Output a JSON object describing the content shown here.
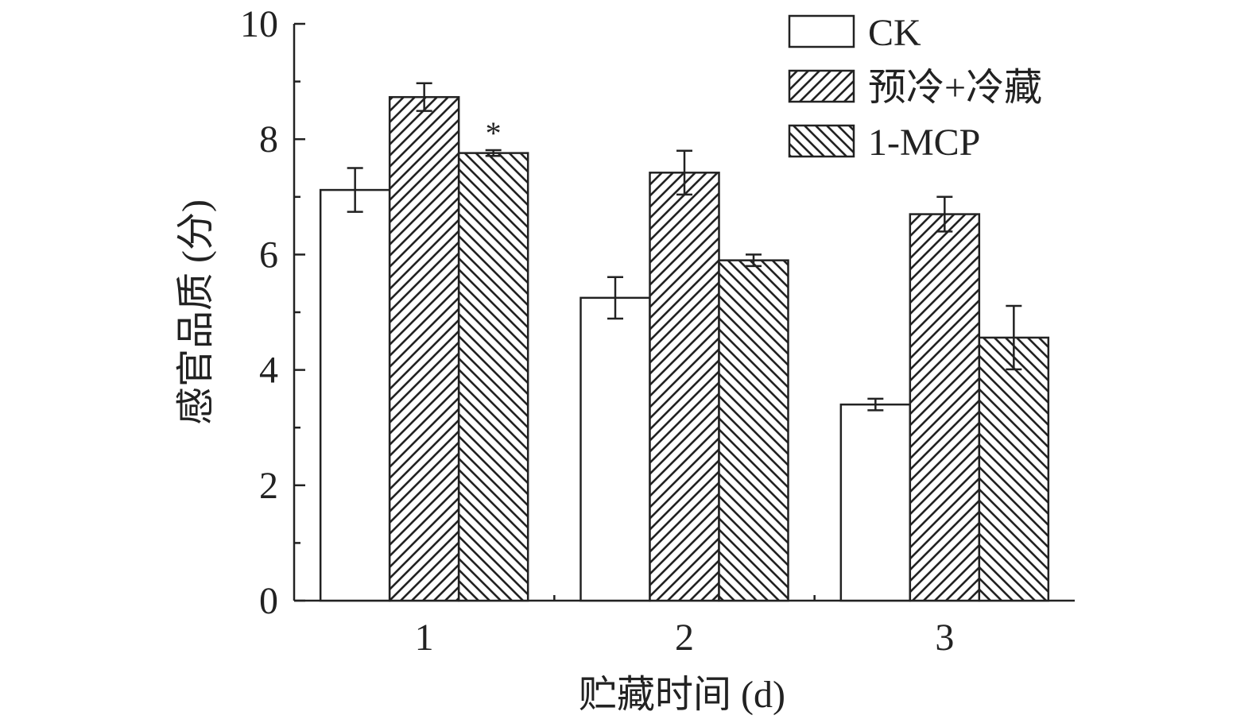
{
  "chart_data": {
    "type": "bar",
    "xlabel": "贮藏时间 (d)",
    "ylabel": "感官品质 (分)",
    "ylim": [
      0,
      10
    ],
    "yticks": [
      "0",
      "2",
      "4",
      "6",
      "8",
      "10"
    ],
    "categories": [
      "1",
      "2",
      "3"
    ],
    "series": [
      {
        "name": "CK",
        "values": [
          7.12,
          5.25,
          3.4
        ],
        "errors": [
          0.38,
          0.36,
          0.1
        ],
        "pattern": "none"
      },
      {
        "name": "预冷+冷藏",
        "values": [
          8.73,
          7.42,
          6.7
        ],
        "errors": [
          0.24,
          0.38,
          0.3
        ],
        "pattern": "forward-hatch"
      },
      {
        "name": "1-MCP",
        "values": [
          7.76,
          5.9,
          4.56
        ],
        "errors": [
          0.05,
          0.1,
          0.55
        ],
        "pattern": "back-hatch"
      }
    ],
    "annotations": [
      {
        "text": "*",
        "category": "1",
        "series": "1-MCP"
      }
    ],
    "legend_position": "top-right",
    "grid": false,
    "colors": {
      "bar_fill": "#ffffff",
      "stroke": "#222222"
    }
  }
}
